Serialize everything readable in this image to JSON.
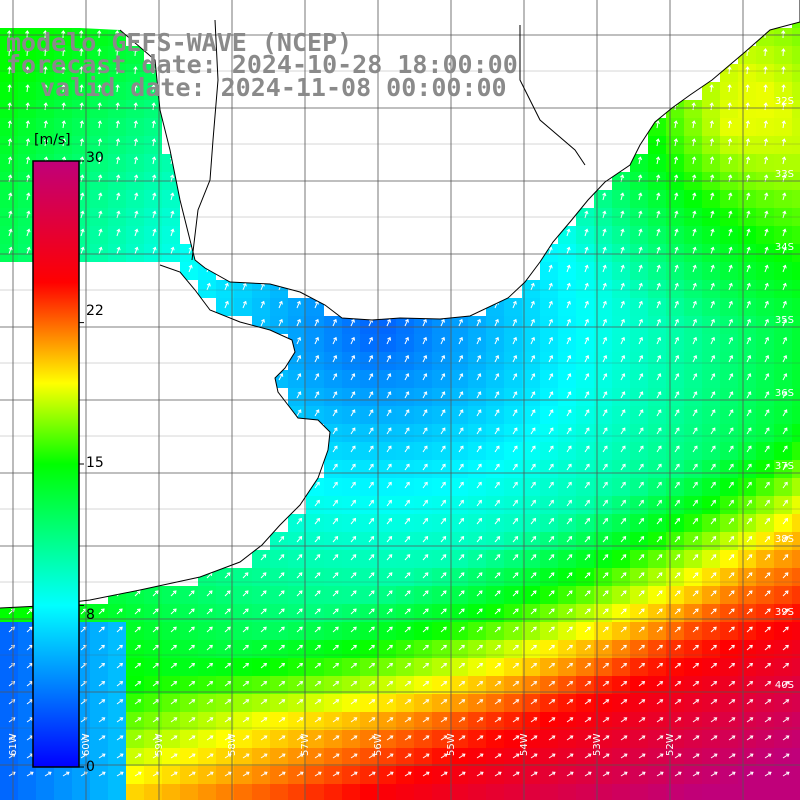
{
  "title": {
    "line1": "modelo GEFS-WAVE (NCEP)",
    "line2": "forecast date: 2024-10-28 18:00:00",
    "line3": "valid date: 2024-11-08 00:00:00"
  },
  "colorbar": {
    "unit": "[m/s]",
    "min": 0,
    "max": 30,
    "tick_labels": [
      "30",
      "22",
      "15",
      "8",
      "0"
    ],
    "tick_values": [
      30,
      22,
      15,
      8,
      0
    ],
    "colors": [
      "#0000ff",
      "#00ffff",
      "#00ff00",
      "#ffff00",
      "#ff0000",
      "#c0007a"
    ]
  },
  "axes": {
    "lat_labels": [
      "32S",
      "33S",
      "34S",
      "35S",
      "36S",
      "37S",
      "38S",
      "39S",
      "40S"
    ],
    "lon_labels": [
      "61W",
      "60W",
      "59W",
      "58W",
      "57W",
      "56W",
      "55W",
      "54W",
      "53W",
      "52W"
    ]
  },
  "colors": {
    "land": "#ffffff",
    "grid": "#555555",
    "coast": "#000000",
    "arrow": "#ffffff"
  }
}
